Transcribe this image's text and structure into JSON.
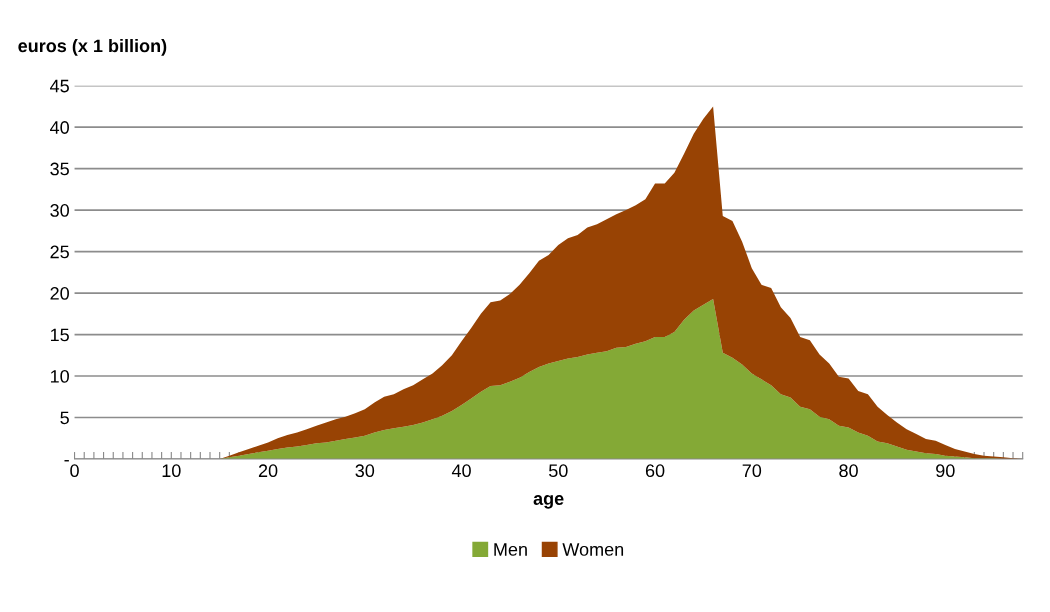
{
  "chart_data": {
    "type": "area",
    "stacked": true,
    "ylabel": "euros (x 1 billion)",
    "xlabel": "age",
    "categories": [
      "0",
      null,
      null,
      null,
      null,
      null,
      null,
      null,
      null,
      null,
      "10",
      null,
      null,
      null,
      null,
      null,
      null,
      null,
      null,
      null,
      "20",
      null,
      null,
      null,
      null,
      null,
      null,
      null,
      null,
      null,
      "30",
      null,
      null,
      null,
      null,
      null,
      null,
      null,
      null,
      null,
      "40",
      null,
      null,
      null,
      null,
      null,
      null,
      null,
      null,
      null,
      "50",
      null,
      null,
      null,
      null,
      null,
      null,
      null,
      null,
      null,
      "60",
      null,
      null,
      null,
      null,
      null,
      null,
      null,
      null,
      null,
      "70",
      null,
      null,
      null,
      null,
      null,
      null,
      null,
      null,
      null,
      "80",
      null,
      null,
      null,
      null,
      null,
      null,
      null,
      null,
      null,
      "90",
      null,
      null,
      null,
      null,
      null,
      null,
      null,
      null
    ],
    "series": [
      {
        "name": "Men",
        "color": "#84a936",
        "values": [
          0,
          0,
          0,
          0,
          0,
          0,
          0,
          0,
          0,
          0,
          0,
          0,
          0,
          0,
          0,
          0,
          0.2,
          0.4,
          0.6,
          0.8,
          1.0,
          1.2,
          1.4,
          1.5,
          1.7,
          1.9,
          2.0,
          2.2,
          2.4,
          2.6,
          2.8,
          3.2,
          3.5,
          3.7,
          3.9,
          4.1,
          4.4,
          4.8,
          5.2,
          5.8,
          6.5,
          7.3,
          8.1,
          8.8,
          8.9,
          9.3,
          9.8,
          10.5,
          11.1,
          11.5,
          11.8,
          12.1,
          12.3,
          12.6,
          12.8,
          13.0,
          13.4,
          13.5,
          13.9,
          14.2,
          14.7,
          14.7,
          15.3,
          16.8,
          17.9,
          18.6,
          19.3,
          12.8,
          12.2,
          11.4,
          10.3,
          9.6,
          8.9,
          7.8,
          7.4,
          6.3,
          6.0,
          5.1,
          4.8,
          4.0,
          3.8,
          3.2,
          2.8,
          2.1,
          1.9,
          1.5,
          1.1,
          0.9,
          0.7,
          0.6,
          0.4,
          0.3,
          0.2,
          0.1,
          0.1,
          0.1,
          0,
          0,
          0
        ]
      },
      {
        "name": "Women",
        "color": "#984304",
        "values": [
          0,
          0,
          0,
          0,
          0,
          0,
          0,
          0,
          0,
          0,
          0,
          0,
          0,
          0,
          0,
          0,
          0.2,
          0.4,
          0.6,
          0.8,
          1.0,
          1.3,
          1.5,
          1.7,
          1.9,
          2.1,
          2.4,
          2.6,
          2.7,
          2.9,
          3.2,
          3.6,
          4.0,
          4.1,
          4.5,
          4.8,
          5.2,
          5.5,
          6.1,
          6.7,
          7.7,
          8.5,
          9.4,
          10.1,
          10.2,
          10.6,
          11.2,
          11.9,
          12.8,
          13.1,
          14.0,
          14.5,
          14.7,
          15.3,
          15.5,
          15.9,
          16.1,
          16.5,
          16.7,
          17.1,
          18.5,
          18.5,
          19.2,
          20.0,
          21.3,
          22.4,
          23.2,
          16.5,
          16.5,
          14.8,
          12.7,
          11.4,
          11.7,
          10.5,
          9.6,
          8.4,
          8.3,
          7.5,
          6.7,
          5.9,
          5.9,
          5.0,
          5.0,
          4.2,
          3.4,
          2.9,
          2.5,
          2.1,
          1.7,
          1.6,
          1.3,
          0.9,
          0.7,
          0.5,
          0.3,
          0.2,
          0.2,
          0.1,
          0
        ]
      }
    ],
    "ylim": [
      0,
      45
    ],
    "yticks": [
      {
        "value": 0,
        "label": "-"
      },
      5,
      10,
      15,
      20,
      25,
      30,
      35,
      40,
      45
    ],
    "grid": "y",
    "legend": "bottom"
  }
}
